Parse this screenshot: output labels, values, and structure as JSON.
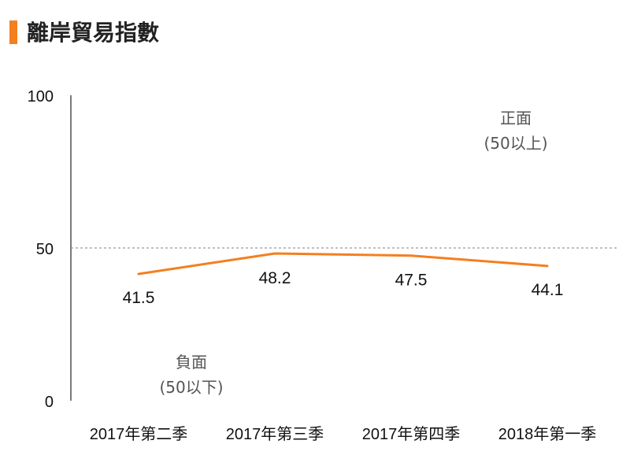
{
  "title": "離岸貿易指數",
  "chart_data": {
    "type": "line",
    "title": "離岸貿易指數",
    "categories": [
      "2017年第二季",
      "2017年第三季",
      "2017年第四季",
      "2018年第一季"
    ],
    "series": [
      {
        "values": [
          41.5,
          48.2,
          47.5,
          44.1
        ],
        "color": "#f47f1f"
      }
    ],
    "data_labels": [
      "41.5",
      "48.2",
      "47.5",
      "44.1"
    ],
    "ylim": [
      0,
      100
    ],
    "yticks": [
      0,
      50,
      100
    ],
    "ytick_labels": [
      "0",
      "50",
      "100"
    ],
    "reference_line": {
      "value": 50,
      "style": "dashed",
      "color": "#808080"
    },
    "annotations": {
      "positive": {
        "line1": "正面",
        "line2": "(50以上)"
      },
      "negative": {
        "line1": "負面",
        "line2": "(50以下)"
      }
    },
    "grid": false,
    "legend": "none"
  }
}
